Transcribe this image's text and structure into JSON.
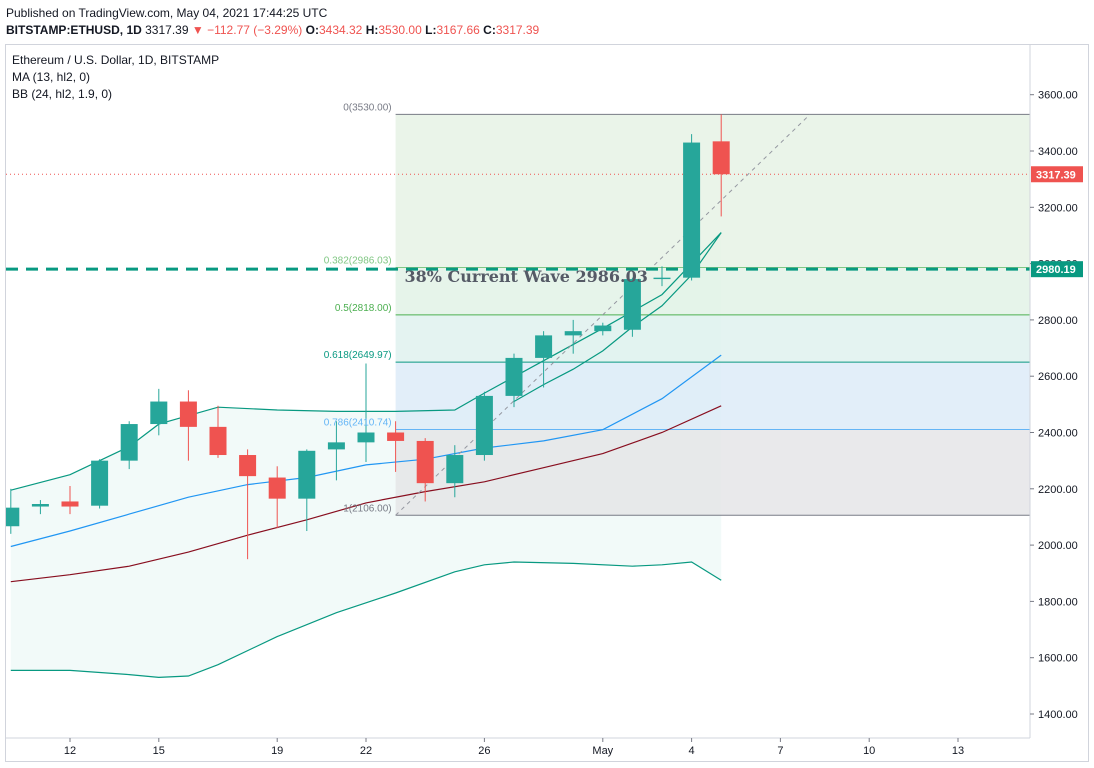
{
  "header": {
    "published": "Published on TradingView.com, May 04, 2021 17:44:25 UTC",
    "symbol": "BITSTAMP:ETHUSD, 1D",
    "last": "3317.39",
    "change_arrow": "▼",
    "change": "−112.77 (−3.29%)",
    "o_label": "O:",
    "o_value": "3434.32",
    "h_label": "H:",
    "h_value": "3530.00",
    "l_label": "L:",
    "l_value": "3167.66",
    "c_label": "C:",
    "c_value": "3317.39"
  },
  "legend": {
    "title": "Ethereum / U.S. Dollar, 1D, BITSTAMP",
    "ma": "MA (13, hl2, 0)",
    "bb": "BB (24, hl2, 1.9, 0)"
  },
  "chart_data": {
    "type": "candlestick",
    "x_axis": {
      "ticks": [
        {
          "day": 12,
          "label": "12"
        },
        {
          "day": 15,
          "label": "15"
        },
        {
          "day": 19,
          "label": "19"
        },
        {
          "day": 22,
          "label": "22"
        },
        {
          "day": 26,
          "label": "26"
        },
        {
          "day": 30,
          "label": "May"
        },
        {
          "day": 33,
          "label": "4"
        },
        {
          "day": 36,
          "label": "7"
        },
        {
          "day": 39,
          "label": "10"
        },
        {
          "day": 42,
          "label": "13"
        }
      ]
    },
    "y_axis": {
      "min": 1300,
      "max": 3650,
      "ticks": [
        "1400.00",
        "1600.00",
        "1800.00",
        "2000.00",
        "2200.00",
        "2400.00",
        "2600.00",
        "2800.00",
        "3000.00",
        "3200.00",
        "3400.00",
        "3600.00"
      ]
    },
    "candles": [
      {
        "day": 10,
        "o": 2067,
        "h": 2200,
        "l": 2040,
        "c": 2133
      },
      {
        "day": 11,
        "o": 2137,
        "h": 2160,
        "l": 2110,
        "c": 2146
      },
      {
        "day": 12,
        "o": 2155,
        "h": 2210,
        "l": 2110,
        "c": 2137
      },
      {
        "day": 13,
        "o": 2140,
        "h": 2305,
        "l": 2130,
        "c": 2300
      },
      {
        "day": 14,
        "o": 2300,
        "h": 2440,
        "l": 2270,
        "c": 2430
      },
      {
        "day": 15,
        "o": 2430,
        "h": 2555,
        "l": 2390,
        "c": 2510
      },
      {
        "day": 16,
        "o": 2510,
        "h": 2550,
        "l": 2300,
        "c": 2420
      },
      {
        "day": 17,
        "o": 2420,
        "h": 2495,
        "l": 2310,
        "c": 2320
      },
      {
        "day": 18,
        "o": 2320,
        "h": 2340,
        "l": 1950,
        "c": 2245
      },
      {
        "day": 19,
        "o": 2240,
        "h": 2280,
        "l": 2060,
        "c": 2165
      },
      {
        "day": 20,
        "o": 2165,
        "h": 2340,
        "l": 2050,
        "c": 2335
      },
      {
        "day": 21,
        "o": 2340,
        "h": 2440,
        "l": 2230,
        "c": 2365
      },
      {
        "day": 22,
        "o": 2365,
        "h": 2645,
        "l": 2295,
        "c": 2400
      },
      {
        "day": 23,
        "o": 2400,
        "h": 2440,
        "l": 2260,
        "c": 2370
      },
      {
        "day": 24,
        "o": 2370,
        "h": 2380,
        "l": 2155,
        "c": 2220
      },
      {
        "day": 25,
        "o": 2220,
        "h": 2355,
        "l": 2170,
        "c": 2320
      },
      {
        "day": 26,
        "o": 2320,
        "h": 2545,
        "l": 2300,
        "c": 2530
      },
      {
        "day": 27,
        "o": 2530,
        "h": 2680,
        "l": 2490,
        "c": 2665
      },
      {
        "day": 28,
        "o": 2665,
        "h": 2760,
        "l": 2560,
        "c": 2745
      },
      {
        "day": 29,
        "o": 2745,
        "h": 2800,
        "l": 2680,
        "c": 2760
      },
      {
        "day": 30,
        "o": 2760,
        "h": 2790,
        "l": 2745,
        "c": 2780
      },
      {
        "day": 31,
        "o": 2765,
        "h": 2950,
        "l": 2740,
        "c": 2945
      },
      {
        "day": 32,
        "o": 2945,
        "h": 2990,
        "l": 2920,
        "c": 2950
      },
      {
        "day": 33,
        "o": 2950,
        "h": 3460,
        "l": 2940,
        "c": 3430
      },
      {
        "day": 34,
        "o": 3434.32,
        "h": 3530,
        "l": 3167.66,
        "c": 3317.39
      }
    ],
    "ma": [
      {
        "day": 27,
        "v": 2510
      },
      {
        "day": 28,
        "v": 2570
      },
      {
        "day": 29,
        "v": 2625
      },
      {
        "day": 30,
        "v": 2690
      },
      {
        "day": 31,
        "v": 2775
      },
      {
        "day": 32,
        "v": 2850
      },
      {
        "day": 33,
        "v": 2960
      },
      {
        "day": 34,
        "v": 3110
      }
    ],
    "bb_upper": [
      {
        "day": 10,
        "v": 2195
      },
      {
        "day": 12,
        "v": 2250
      },
      {
        "day": 14,
        "v": 2350
      },
      {
        "day": 15,
        "v": 2430
      },
      {
        "day": 17,
        "v": 2490
      },
      {
        "day": 19,
        "v": 2480
      },
      {
        "day": 21,
        "v": 2475
      },
      {
        "day": 23,
        "v": 2475
      },
      {
        "day": 25,
        "v": 2480
      },
      {
        "day": 26,
        "v": 2540
      },
      {
        "day": 28,
        "v": 2655
      },
      {
        "day": 30,
        "v": 2770
      },
      {
        "day": 32,
        "v": 2890
      },
      {
        "day": 34,
        "v": 3110
      }
    ],
    "bb_basis": [
      {
        "day": 10,
        "v": 1995
      },
      {
        "day": 12,
        "v": 2050
      },
      {
        "day": 14,
        "v": 2110
      },
      {
        "day": 16,
        "v": 2170
      },
      {
        "day": 18,
        "v": 2215
      },
      {
        "day": 20,
        "v": 2240
      },
      {
        "day": 22,
        "v": 2285
      },
      {
        "day": 24,
        "v": 2305
      },
      {
        "day": 26,
        "v": 2345
      },
      {
        "day": 28,
        "v": 2370
      },
      {
        "day": 30,
        "v": 2410
      },
      {
        "day": 32,
        "v": 2520
      },
      {
        "day": 34,
        "v": 2675
      }
    ],
    "bb_lower": [
      {
        "day": 10,
        "v": 1555
      },
      {
        "day": 12,
        "v": 1555
      },
      {
        "day": 14,
        "v": 1540
      },
      {
        "day": 15,
        "v": 1530
      },
      {
        "day": 16,
        "v": 1535
      },
      {
        "day": 17,
        "v": 1575
      },
      {
        "day": 19,
        "v": 1675
      },
      {
        "day": 21,
        "v": 1760
      },
      {
        "day": 23,
        "v": 1830
      },
      {
        "day": 25,
        "v": 1905
      },
      {
        "day": 26,
        "v": 1930
      },
      {
        "day": 27,
        "v": 1940
      },
      {
        "day": 29,
        "v": 1935
      },
      {
        "day": 31,
        "v": 1925
      },
      {
        "day": 32,
        "v": 1930
      },
      {
        "day": 33,
        "v": 1940
      },
      {
        "day": 34,
        "v": 1875
      }
    ],
    "ma_slow": [
      {
        "day": 10,
        "v": 1870
      },
      {
        "day": 12,
        "v": 1895
      },
      {
        "day": 14,
        "v": 1925
      },
      {
        "day": 16,
        "v": 1975
      },
      {
        "day": 18,
        "v": 2035
      },
      {
        "day": 20,
        "v": 2090
      },
      {
        "day": 22,
        "v": 2150
      },
      {
        "day": 24,
        "v": 2190
      },
      {
        "day": 26,
        "v": 2225
      },
      {
        "day": 28,
        "v": 2275
      },
      {
        "day": 30,
        "v": 2325
      },
      {
        "day": 32,
        "v": 2400
      },
      {
        "day": 34,
        "v": 2495
      }
    ],
    "fib": {
      "start_day": 23,
      "end_day": 45,
      "levels": [
        {
          "ratio": 0,
          "label": "0(3530.00)",
          "price": 3530.0,
          "color": "#787b86",
          "fill": "#e6f2e5"
        },
        {
          "ratio": 0.382,
          "label": "0.382(2986.03)",
          "price": 2986.03,
          "color": "#81c784",
          "fill": "#e2f2e6"
        },
        {
          "ratio": 0.5,
          "label": "0.5(2818.00)",
          "price": 2818.0,
          "color": "#4caf50",
          "fill": "#dff1ee"
        },
        {
          "ratio": 0.618,
          "label": "0.618(2649.97)",
          "price": 2649.97,
          "color": "#089981",
          "fill": "#ddebf8"
        },
        {
          "ratio": 0.786,
          "label": "0.786(2410.74)",
          "price": 2410.74,
          "color": "#64b5f6",
          "fill": "#e5e5e8"
        },
        {
          "ratio": 1,
          "label": "1(2106.00)",
          "price": 2106.0,
          "color": "#787b86",
          "fill": null
        }
      ]
    },
    "trend_line": {
      "from_day": 23,
      "from_price": 2106,
      "to_day": 37,
      "to_price": 3530
    },
    "horizontal_line": {
      "price": 2980.19,
      "label": "2980.19",
      "color": "#089981"
    },
    "last_price_line": {
      "price": 3317.39,
      "label": "3317.39",
      "color": "#ef5350"
    },
    "annotation": {
      "text": "38% Current Wave 2986.03",
      "day": 23.3,
      "price": 2935
    }
  }
}
